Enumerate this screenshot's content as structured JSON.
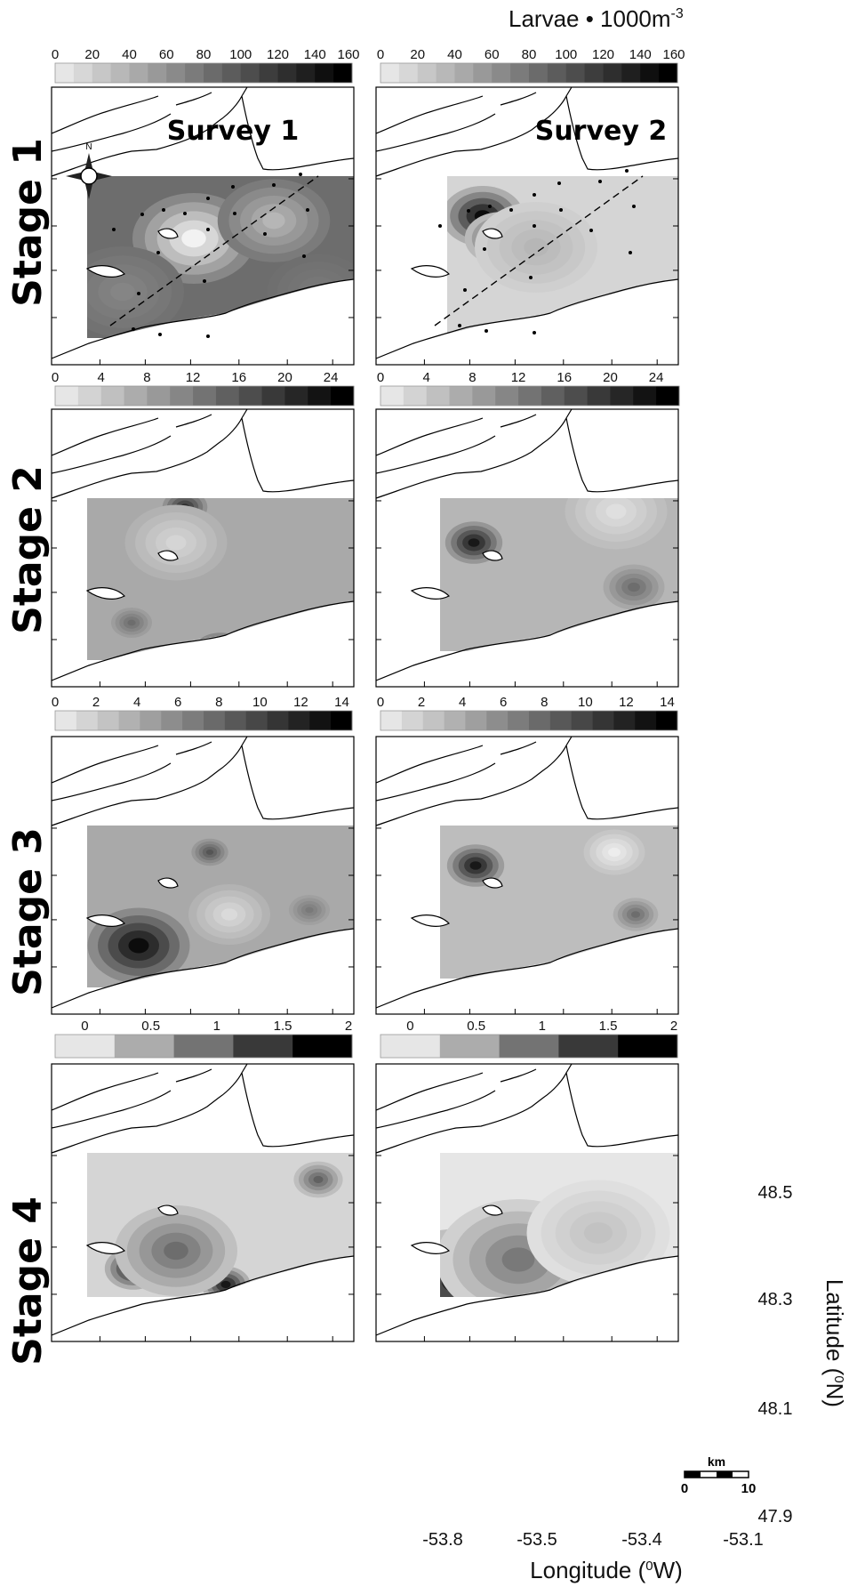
{
  "header": {
    "units_label": "Larvae • 1000m",
    "units_exp": "-3"
  },
  "surveys": [
    "Survey 1",
    "Survey 2"
  ],
  "stages": [
    {
      "label": "Stage 1",
      "legend_ticks": [
        "0",
        "20",
        "40",
        "60",
        "80",
        "100",
        "120",
        "140",
        "160"
      ],
      "legend_max": 160,
      "legend_bins": 16
    },
    {
      "label": "Stage 2",
      "legend_ticks": [
        "0",
        "4",
        "8",
        "12",
        "16",
        "20",
        "24"
      ],
      "legend_max": 26,
      "legend_bins": 13
    },
    {
      "label": "Stage 3",
      "legend_ticks": [
        "0",
        "2",
        "4",
        "6",
        "8",
        "10",
        "12",
        "14"
      ],
      "legend_max": 14.5,
      "legend_bins": 14
    },
    {
      "label": "Stage 4",
      "legend_ticks": [
        "0",
        "0.5",
        "1",
        "1.5",
        "2"
      ],
      "legend_max": 2.25,
      "legend_bins": 5
    }
  ],
  "axes": {
    "latitude_ticks": [
      "48.5",
      "48.3",
      "48.1",
      "47.9"
    ],
    "latitude_title": "Latitude (",
    "longitude_ticks": [
      "-53.8",
      "-53.5",
      "-53.4",
      "-53.1"
    ],
    "longitude_title": "Longitude (",
    "degree_sup": "0",
    "lat_unit": "N)",
    "lon_unit": "W)"
  },
  "scale_bar": {
    "unit": "km",
    "min": "0",
    "max": "10"
  },
  "compass": {
    "north_label": "N"
  },
  "colors": {
    "land": "#ffffff",
    "coast": "#000000",
    "ramp_low": "#f2f2f2",
    "ramp_high": "#000000"
  }
}
